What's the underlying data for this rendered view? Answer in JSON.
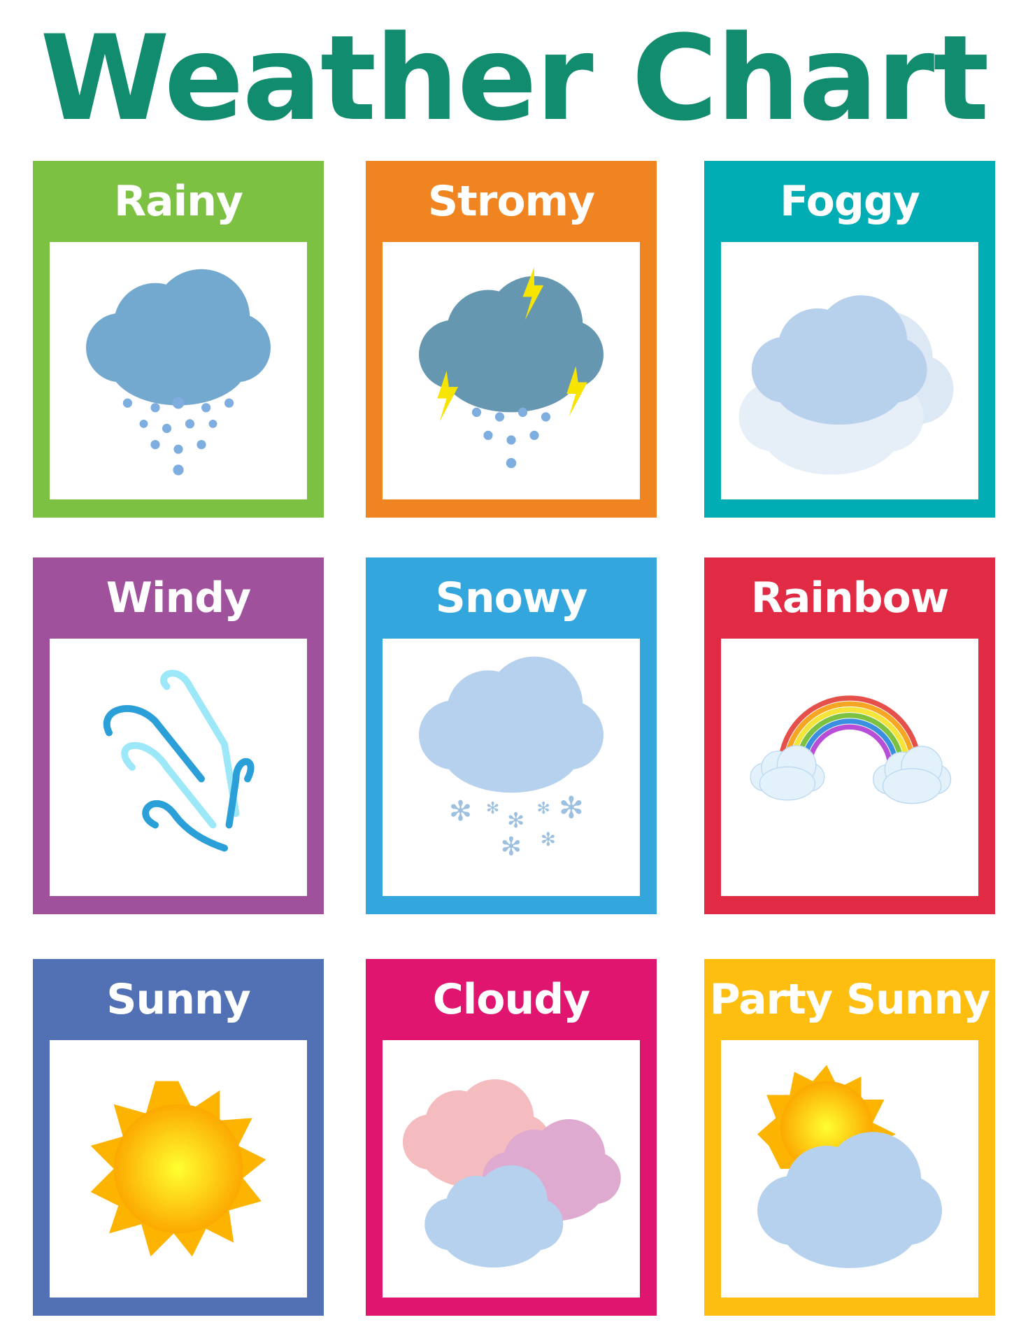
{
  "title": "Weather Chart",
  "title_color": "#128c6e",
  "cards": [
    {
      "label": "Rainy",
      "color": "#7cc142",
      "icon": "rain-cloud-icon"
    },
    {
      "label": "Stromy",
      "color": "#f08421",
      "icon": "storm-cloud-icon"
    },
    {
      "label": "Foggy",
      "color": "#00adb5",
      "icon": "fog-icon"
    },
    {
      "label": "Windy",
      "color": "#a0519b",
      "icon": "wind-icon"
    },
    {
      "label": "Snowy",
      "color": "#33a6de",
      "icon": "snow-cloud-icon"
    },
    {
      "label": "Rainbow",
      "color": "#e12b45",
      "icon": "rainbow-icon"
    },
    {
      "label": "Sunny",
      "color": "#5271b5",
      "icon": "sun-icon"
    },
    {
      "label": "Cloudy",
      "color": "#e0156f",
      "icon": "clouds-icon"
    },
    {
      "label": "Party Sunny",
      "color": "#fdbe10",
      "icon": "partly-sunny-icon"
    }
  ]
}
